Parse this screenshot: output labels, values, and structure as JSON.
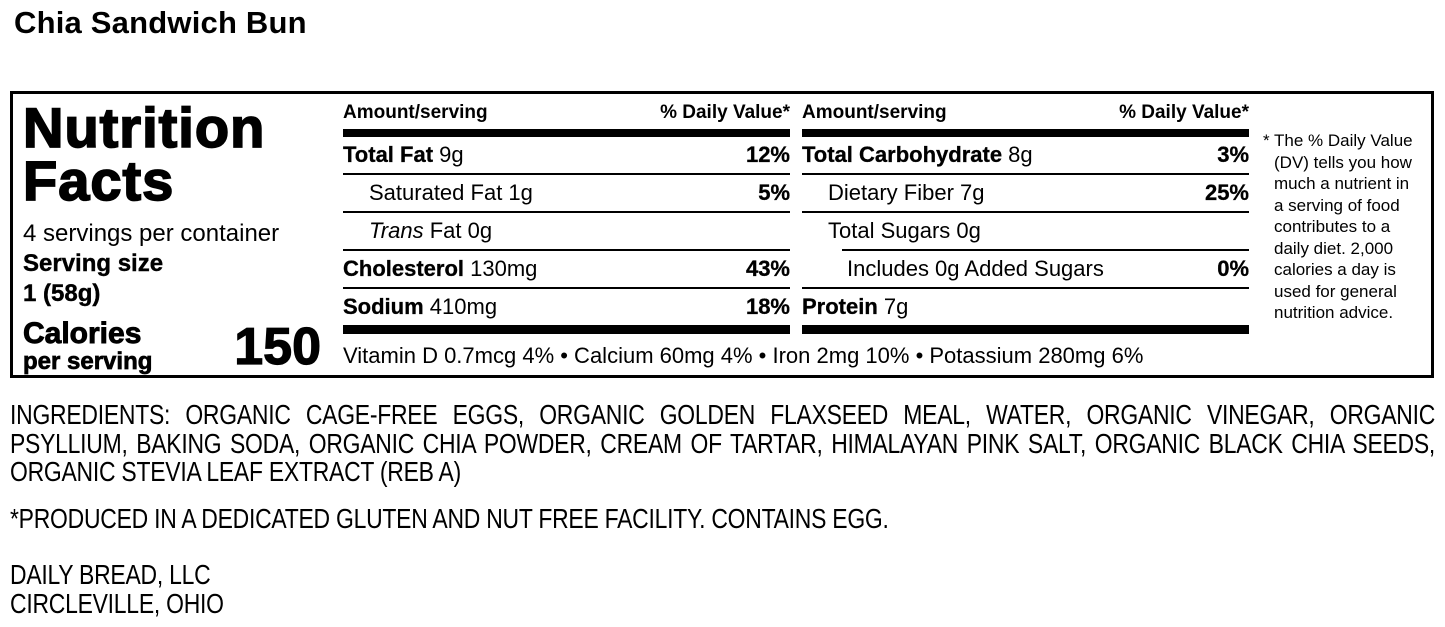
{
  "document": {
    "title": "Chia Sandwich Bun"
  },
  "colors": {
    "text": "#000000",
    "background": "#ffffff"
  },
  "nutrition_label": {
    "heading": {
      "line1": "Nutrition",
      "line2": "Facts"
    },
    "servings_per_container": "4 servings per container",
    "serving_size": {
      "label": "Serving size",
      "value": "1 (58g)"
    },
    "calories": {
      "label": "Calories",
      "sublabel": "per serving",
      "value": "150"
    },
    "columns": {
      "amount_header": "Amount/serving",
      "dv_header": "% Daily Value*",
      "left": [
        {
          "b": "Total Fat",
          "t": " 9g",
          "dv": "12%"
        },
        {
          "t": "Saturated Fat 1g",
          "dv": "5%"
        },
        {
          "i": "Trans",
          "t": " Fat 0g",
          "dv": ""
        },
        {
          "b": "Cholesterol",
          "t": " 130mg",
          "dv": "43%"
        },
        {
          "b": "Sodium",
          "t": " 410mg",
          "dv": "18%"
        }
      ],
      "right": [
        {
          "b": "Total Carbohydrate",
          "t": " 8g",
          "dv": "3%"
        },
        {
          "t": "Dietary Fiber 7g",
          "dv": "25%"
        },
        {
          "t": "Total Sugars 0g",
          "dv": ""
        },
        {
          "t": "Includes 0g Added Sugars",
          "dv": "0%"
        },
        {
          "b": "Protein",
          "t": " 7g",
          "dv": ""
        }
      ]
    },
    "micronutrients": "Vitamin D 0.7mcg 4% • Calcium 60mg 4% • Iron 2mg 10% • Potassium 280mg 6%",
    "footnote": "* The % Daily Value (DV) tells you how much a nutrient in a serving of food contributes to a daily diet. 2,000 calories a day is used for general nutrition advice."
  },
  "ingredients": "INGREDIENTS: ORGANIC CAGE-FREE EGGS, ORGANIC GOLDEN FLAXSEED MEAL, WATER, ORGANIC VINEGAR, ORGANIC PSYLLIUM, BAKING SODA, ORGANIC CHIA POWDER, CREAM OF TARTAR, HIMALAYAN PINK SALT, ORGANIC BLACK CHIA SEEDS, ORGANIC STEVIA LEAF EXTRACT (REB A)",
  "facility_note": "*PRODUCED IN A DEDICATED GLUTEN AND NUT FREE FACILITY. CONTAINS EGG.",
  "manufacturer": {
    "name": "DAILY BREAD, LLC",
    "location": "CIRCLEVILLE, OHIO"
  }
}
